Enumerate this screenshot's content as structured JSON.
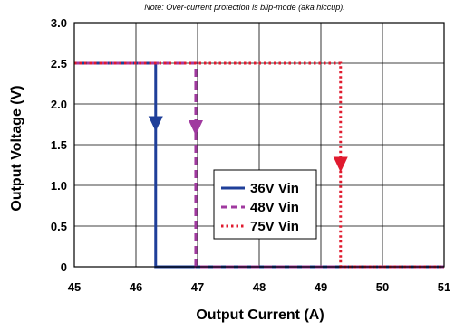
{
  "chart_data": {
    "type": "line",
    "note": "Note: Over-current protection is blip-mode (aka hiccup).",
    "xlabel": "Output Current (A)",
    "ylabel": "Output Voltage (V)",
    "xlim": [
      45,
      51
    ],
    "ylim": [
      0,
      3.0
    ],
    "x_ticks": [
      "45",
      "46",
      "47",
      "48",
      "49",
      "50",
      "51"
    ],
    "y_ticks": [
      "0",
      "0.5",
      "1.0",
      "1.5",
      "2.0",
      "2.5",
      "3.0"
    ],
    "grid": true,
    "legend_position": "center-right",
    "series": [
      {
        "name": "36V Vin",
        "color": "#1f3f99",
        "style": "solid",
        "x": [
          45,
          46.32,
          46.32,
          51
        ],
        "y": [
          2.5,
          2.5,
          0,
          0
        ],
        "arrow": {
          "x": 46.32,
          "y": 1.75
        }
      },
      {
        "name": "48V Vin",
        "color": "#a0399f",
        "style": "dashed",
        "x": [
          45,
          46.97,
          46.97,
          51
        ],
        "y": [
          2.5,
          2.5,
          0,
          0
        ],
        "arrow": {
          "x": 46.97,
          "y": 1.7
        }
      },
      {
        "name": "75V Vin",
        "color": "#e01a2e",
        "style": "dotted",
        "x": [
          45,
          49.32,
          49.32,
          51
        ],
        "y": [
          2.5,
          2.5,
          0,
          0
        ],
        "arrow": {
          "x": 49.32,
          "y": 1.25
        }
      }
    ]
  }
}
